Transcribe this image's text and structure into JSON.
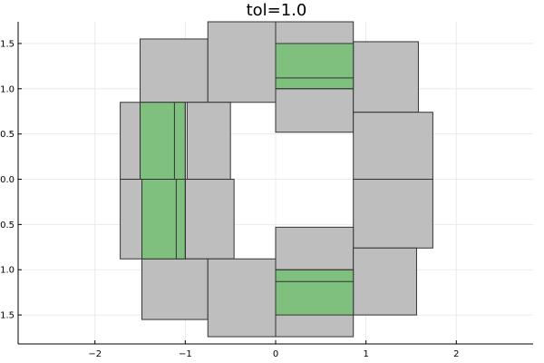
{
  "chart_data": {
    "type": "rectangles",
    "title": "tol=1.0",
    "xlabel": "",
    "ylabel": "",
    "xlim": [
      -2.85,
      2.85
    ],
    "ylim": [
      -1.82,
      1.74
    ],
    "x_ticks": [
      -2,
      -1,
      0,
      1,
      2
    ],
    "x_tick_labels": [
      "−2",
      "−1",
      "0",
      "1",
      "2"
    ],
    "y_ticks": [
      -1.5,
      -1.0,
      -0.5,
      0.0,
      0.5,
      1.0,
      1.5
    ],
    "y_tick_labels": [
      "1.5",
      "1.0",
      "0.5",
      "0.0",
      "0.5",
      "1.0",
      "1.5"
    ],
    "grid": true,
    "legend": "none",
    "colors": {
      "gray_fill": "#bebebe",
      "green_fill": "#7fc07f",
      "edge": "#333333"
    },
    "gray_boxes": [
      {
        "x": [
          -1.5,
          -0.75
        ],
        "y": [
          0.85,
          1.55
        ]
      },
      {
        "x": [
          -0.75,
          0.0
        ],
        "y": [
          0.85,
          1.74
        ]
      },
      {
        "x": [
          0.0,
          0.86
        ],
        "y": [
          0.52,
          1.74
        ]
      },
      {
        "x": [
          0.86,
          1.58
        ],
        "y": [
          0.74,
          1.52
        ]
      },
      {
        "x": [
          -1.72,
          -1.5
        ],
        "y": [
          0.0,
          0.85
        ]
      },
      {
        "x": [
          -0.98,
          -0.5
        ],
        "y": [
          0.0,
          0.85
        ]
      },
      {
        "x": [
          0.86,
          1.74
        ],
        "y": [
          0.0,
          0.74
        ]
      },
      {
        "x": [
          -1.72,
          -1.48
        ],
        "y": [
          -0.88,
          0.0
        ]
      },
      {
        "x": [
          -1.0,
          -0.46
        ],
        "y": [
          -0.88,
          0.0
        ]
      },
      {
        "x": [
          0.86,
          1.74
        ],
        "y": [
          -0.76,
          0.0
        ]
      },
      {
        "x": [
          0.0,
          0.86
        ],
        "y": [
          -1.74,
          -0.53
        ]
      },
      {
        "x": [
          0.86,
          1.56
        ],
        "y": [
          -1.5,
          -0.76
        ]
      },
      {
        "x": [
          -1.48,
          -0.75
        ],
        "y": [
          -1.55,
          -0.88
        ]
      },
      {
        "x": [
          -0.75,
          0.0
        ],
        "y": [
          -1.74,
          -0.88
        ]
      }
    ],
    "green_boxes": [
      {
        "x": [
          0.0,
          0.86
        ],
        "y": [
          1.0,
          1.5
        ]
      },
      {
        "x": [
          -1.5,
          -1.0
        ],
        "y": [
          0.0,
          0.85
        ]
      },
      {
        "x": [
          -1.48,
          -1.0
        ],
        "y": [
          -0.88,
          0.0
        ]
      },
      {
        "x": [
          0.0,
          0.86
        ],
        "y": [
          -1.5,
          -1.0
        ]
      }
    ],
    "inner_lines": [
      {
        "x1": 0.0,
        "y1": 1.12,
        "x2": 0.86,
        "y2": 1.12
      },
      {
        "x1": 0.0,
        "y1": 1.0,
        "x2": 0.86,
        "y2": 1.0
      },
      {
        "x1": -1.12,
        "y1": 0.0,
        "x2": -1.12,
        "y2": 0.85
      },
      {
        "x1": -1.0,
        "y1": 0.0,
        "x2": -1.0,
        "y2": 0.85
      },
      {
        "x1": -1.1,
        "y1": -0.88,
        "x2": -1.1,
        "y2": 0.0
      },
      {
        "x1": -1.0,
        "y1": -0.88,
        "x2": -1.0,
        "y2": 0.0
      },
      {
        "x1": 0.0,
        "y1": -1.13,
        "x2": 0.86,
        "y2": -1.13
      },
      {
        "x1": 0.0,
        "y1": -1.0,
        "x2": 0.86,
        "y2": -1.0
      },
      {
        "x1": -1.72,
        "y1": 0.0,
        "x2": -0.46,
        "y2": 0.0
      },
      {
        "x1": 0.86,
        "y1": 0.0,
        "x2": 1.74,
        "y2": 0.0
      }
    ]
  }
}
